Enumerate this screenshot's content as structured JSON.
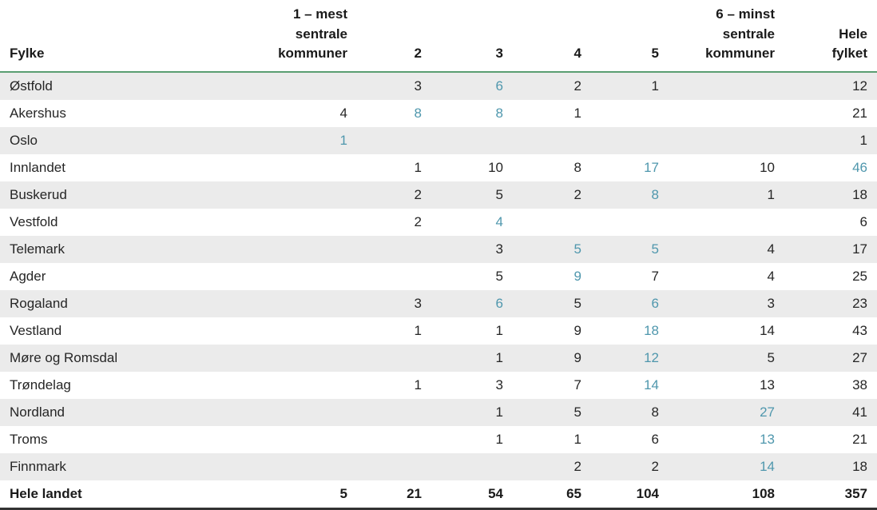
{
  "colors": {
    "highlight_value": "#4f97ad",
    "row_stripe": "#ebebeb",
    "header_rule_green": "#5a9e72",
    "footer_rule_dark": "#333333",
    "text": "#262626"
  },
  "chart_data": {
    "type": "table",
    "title": "",
    "columns": [
      "Fylke",
      "1 – mest\nsentrale\nkommuner",
      "2",
      "3",
      "4",
      "5",
      "6 – minst\nsentrale\nkommuner",
      "Hele\nfylket"
    ],
    "rows": [
      {
        "name": "Østfold",
        "values": [
          "",
          "3",
          "6",
          "2",
          "1",
          "",
          "12"
        ],
        "highlight": [
          2
        ]
      },
      {
        "name": "Akershus",
        "values": [
          "4",
          "8",
          "8",
          "1",
          "",
          "",
          "21"
        ],
        "highlight": [
          1,
          2
        ]
      },
      {
        "name": "Oslo",
        "values": [
          "1",
          "",
          "",
          "",
          "",
          "",
          "1"
        ],
        "highlight": [
          0
        ]
      },
      {
        "name": "Innlandet",
        "values": [
          "",
          "1",
          "10",
          "8",
          "17",
          "10",
          "46"
        ],
        "highlight": [
          4,
          6
        ]
      },
      {
        "name": "Buskerud",
        "values": [
          "",
          "2",
          "5",
          "2",
          "8",
          "1",
          "18"
        ],
        "highlight": [
          4
        ]
      },
      {
        "name": "Vestfold",
        "values": [
          "",
          "2",
          "4",
          "",
          "",
          "",
          "6"
        ],
        "highlight": [
          2
        ]
      },
      {
        "name": "Telemark",
        "values": [
          "",
          "",
          "3",
          "5",
          "5",
          "4",
          "17"
        ],
        "highlight": [
          3,
          4
        ]
      },
      {
        "name": "Agder",
        "values": [
          "",
          "",
          "5",
          "9",
          "7",
          "4",
          "25"
        ],
        "highlight": [
          3
        ]
      },
      {
        "name": "Rogaland",
        "values": [
          "",
          "3",
          "6",
          "5",
          "6",
          "3",
          "23"
        ],
        "highlight": [
          2,
          4
        ]
      },
      {
        "name": "Vestland",
        "values": [
          "",
          "1",
          "1",
          "9",
          "18",
          "14",
          "43"
        ],
        "highlight": [
          4
        ]
      },
      {
        "name": "Møre og Romsdal",
        "values": [
          "",
          "",
          "1",
          "9",
          "12",
          "5",
          "27"
        ],
        "highlight": [
          4
        ]
      },
      {
        "name": "Trøndelag",
        "values": [
          "",
          "1",
          "3",
          "7",
          "14",
          "13",
          "38"
        ],
        "highlight": [
          4
        ]
      },
      {
        "name": "Nordland",
        "values": [
          "",
          "",
          "1",
          "5",
          "8",
          "27",
          "41"
        ],
        "highlight": [
          5
        ]
      },
      {
        "name": "Troms",
        "values": [
          "",
          "",
          "1",
          "1",
          "6",
          "13",
          "21"
        ],
        "highlight": [
          5
        ]
      },
      {
        "name": "Finnmark",
        "values": [
          "",
          "",
          "",
          "2",
          "2",
          "14",
          "18"
        ],
        "highlight": [
          5
        ]
      }
    ],
    "total_row": {
      "name": "Hele landet",
      "values": [
        "5",
        "21",
        "54",
        "65",
        "104",
        "108",
        "357"
      ]
    }
  }
}
